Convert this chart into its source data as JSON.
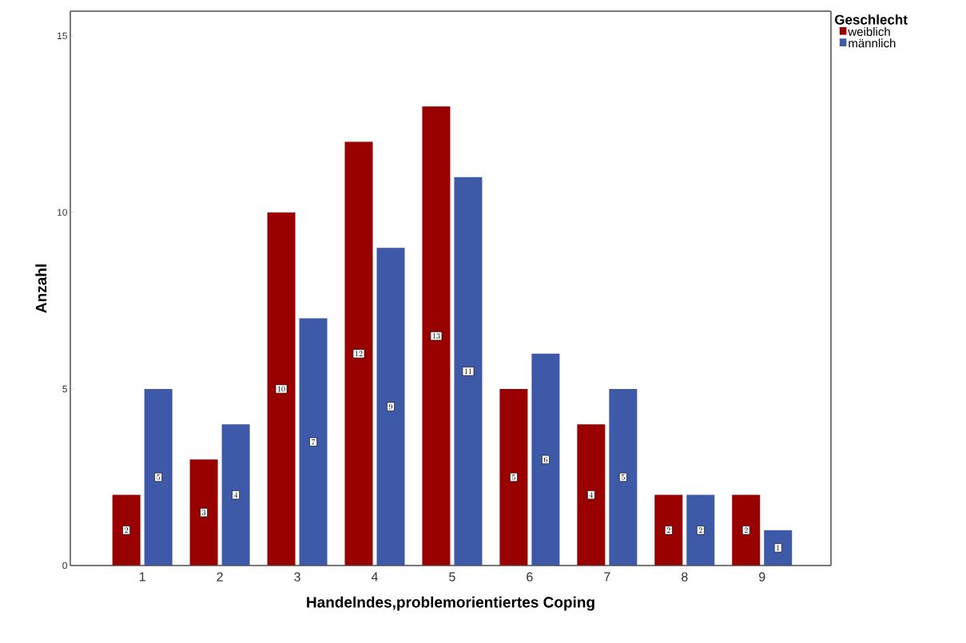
{
  "chart_data": {
    "type": "bar",
    "xlabel": "Handelndes,problemorientiertes Coping",
    "ylabel": "Anzahl",
    "legend_title": "Geschlecht",
    "categories": [
      "1",
      "2",
      "3",
      "4",
      "5",
      "6",
      "7",
      "8",
      "9"
    ],
    "series": [
      {
        "name": "weiblich",
        "color": "#990000",
        "values": [
          2,
          3,
          10,
          12,
          13,
          5,
          4,
          2,
          2
        ]
      },
      {
        "name": "männlich",
        "color": "#3e59a8",
        "values": [
          5,
          4,
          7,
          9,
          11,
          6,
          5,
          2,
          1
        ]
      }
    ],
    "ylim": [
      0,
      15.7
    ],
    "yticks": [
      0,
      5,
      10,
      15
    ],
    "grid": false,
    "legend": "top right",
    "data_labels": true
  }
}
